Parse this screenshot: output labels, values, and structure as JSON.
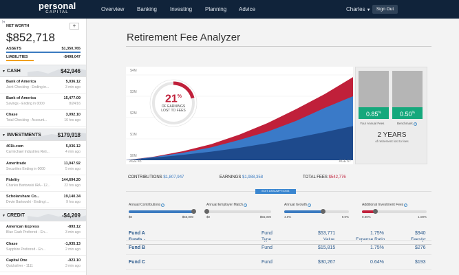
{
  "nav": {
    "logo_main": "personal",
    "logo_sub": "CAPITAL",
    "items": [
      "Overview",
      "Banking",
      "Investing",
      "Planning",
      "Advice"
    ],
    "user": "Charles",
    "signout": "Sign Out"
  },
  "sidebar": {
    "net_worth_label": "NET WORTH",
    "net_worth_value": "$852,718",
    "assets_label": "ASSETS",
    "assets_value": "$1,350,765",
    "liabilities_label": "LIABILITIES",
    "liabilities_value": "-$498,047",
    "sections": [
      {
        "name": "CASH",
        "total": "$42,946",
        "accounts": [
          {
            "name": "Bank of America",
            "desc": "Joint Checking - Ending in...",
            "amount": "5,036.12",
            "time": "3 min ago"
          },
          {
            "name": "Bank of America",
            "desc": "Savings - Ending in 0000",
            "amount": "15,477.09",
            "time": "8/24/16"
          },
          {
            "name": "Chase",
            "desc": "Total Checking - Account...",
            "amount": "3,092.10",
            "time": "16 hrs ago"
          }
        ]
      },
      {
        "name": "INVESTMENTS",
        "total": "$179,918",
        "accounts": [
          {
            "name": "401k.com",
            "desc": "Carmichael Industries Reti...",
            "amount": "5,036.12",
            "time": "4 min ago"
          },
          {
            "name": "Ameritrade",
            "desc": "Securities Ending in 0000",
            "amount": "11,047.92",
            "time": "5 min ago"
          },
          {
            "name": "Fidelity",
            "desc": "Charles Bartowski IRA - 12...",
            "amount": "144,694.20",
            "time": "22 hrs ago"
          },
          {
            "name": "Scholarshare Co...",
            "desc": "Devin Bartowski - Ending i...",
            "amount": "19,140.34",
            "time": "9 hrs ago"
          }
        ]
      },
      {
        "name": "CREDIT",
        "total": "-$4,209",
        "accounts": [
          {
            "name": "American Express",
            "desc": "Blue Cash Preferred - En...",
            "amount": "-893.12",
            "time": "3 min ago"
          },
          {
            "name": "Chase",
            "desc": "Sapphire Preferred - En...",
            "amount": "-1,935.13",
            "time": "2 min ago"
          },
          {
            "name": "Capital One",
            "desc": "Quicksilver - 1111",
            "amount": "-923.10",
            "time": "3 min ago"
          }
        ]
      }
    ]
  },
  "main": {
    "title": "Retirement Fee Analyzer",
    "donut": {
      "percent": "21",
      "percent_sign": "%",
      "caption_1": "OF EARNINGS",
      "caption_2": "LOST TO FEES",
      "lost_fraction": 0.21
    },
    "fees_panel": {
      "your_fees": "0.85",
      "your_fees_label": "Your Annual Fees",
      "benchmark": "0.50",
      "benchmark_label": "Benchmark",
      "pct": "%",
      "years": "2 YEARS",
      "years_caption": "of retirement lost to fees"
    },
    "totals": {
      "contributions_label": "CONTRIBUTIONS",
      "contributions_value": "$1,807,947",
      "earnings_label": "EARNINGS",
      "earnings_value": "$1,988,358",
      "fees_label": "TOTAL FEES",
      "fees_value": "$542,776"
    },
    "edit_button": "EDIT ASSUMPTIONS",
    "sliders": [
      {
        "label": "Annual Contributions",
        "min": "$0",
        "max": "$56,000",
        "fraction": 1.0,
        "color": "#3a7ac0"
      },
      {
        "label": "Annual Employer Match",
        "min": "$0",
        "max": "$56,000",
        "fraction": 0.0,
        "color": "#3a7ac0"
      },
      {
        "label": "Annual Growth",
        "min": "4.0%",
        "max": "9.0%",
        "fraction": 0.6,
        "color": "#3a7ac0"
      },
      {
        "label": "Additional Investment Fees",
        "min": "0.00%",
        "max": "1.00%",
        "fraction": 0.2,
        "color": "#c0203a"
      }
    ],
    "table": {
      "headers": {
        "funds": "Funds",
        "sort": "▲",
        "type": "Type",
        "value": "Value",
        "ratio": "Expense Ratio",
        "fees": "Fees/yr"
      },
      "rows": [
        {
          "fund": "Fund A",
          "type": "Fund",
          "value": "$53,771",
          "ratio": "1.75%",
          "fees": "$940"
        },
        {
          "fund": "Fund B",
          "type": "Fund",
          "value": "$15,815",
          "ratio": "1.75%",
          "fees": "$276"
        },
        {
          "fund": "Fund C",
          "type": "Fund",
          "value": "$30,267",
          "ratio": "0.64%",
          "fees": "$193"
        }
      ]
    }
  },
  "chart_data": {
    "type": "area",
    "yticks": [
      "$4M",
      "$3M",
      "$2M",
      "$1M",
      "$0M"
    ],
    "ylim": [
      0,
      4
    ],
    "x_start_label": "AGE 45",
    "x_end_label": "AGE 67",
    "series": [
      {
        "values": [
          0.0,
          0.12,
          0.25,
          0.4,
          0.58,
          0.8,
          1.05,
          1.32,
          1.6
        ],
        "color": "#1e4a8c"
      },
      {
        "values": [
          0.0,
          0.15,
          0.35,
          0.6,
          0.95,
          1.35,
          1.85,
          2.45,
          3.0
        ],
        "color": "#3a7ac8"
      },
      {
        "values": [
          0.0,
          0.17,
          0.42,
          0.75,
          1.2,
          1.75,
          2.4,
          3.1,
          3.9
        ],
        "color": "#c0203a"
      }
    ]
  },
  "colors": {
    "nav_bg": "#10233a",
    "accent_blue": "#3a86d0",
    "fee_red": "#c0203a",
    "fee_green": "#15a87c"
  }
}
